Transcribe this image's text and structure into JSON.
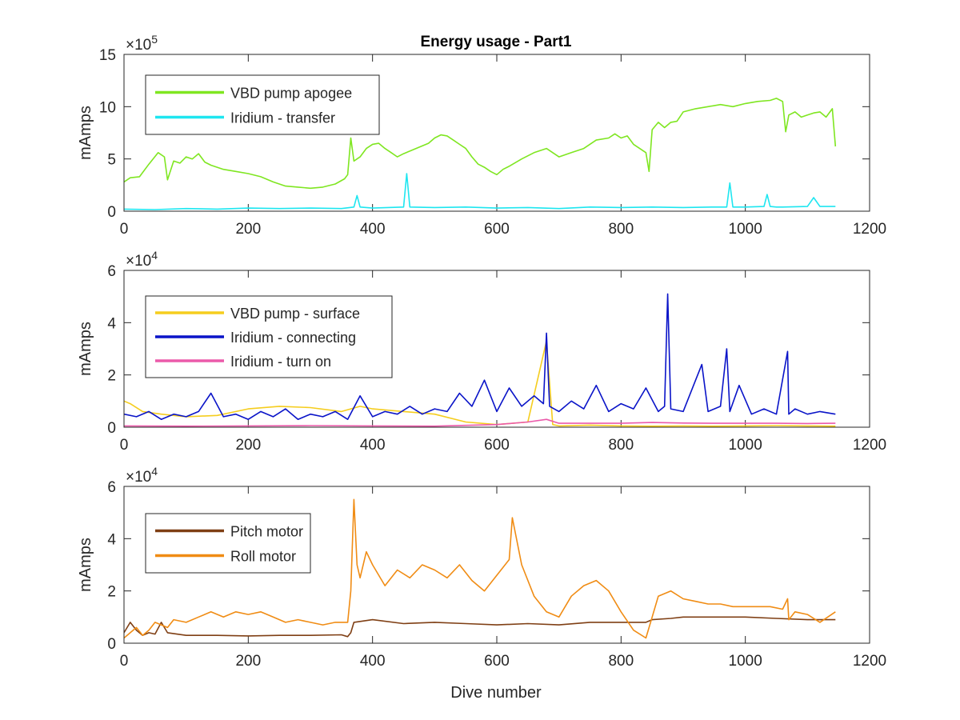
{
  "figure": {
    "title": "Energy usage - Part1",
    "xlabel": "Dive number"
  },
  "chart_data": [
    {
      "type": "line",
      "title": "Energy usage - Part1",
      "xlabel": "",
      "ylabel": "mAmps",
      "xlim": [
        0,
        1200
      ],
      "ylim": [
        0,
        1500000
      ],
      "xticks": [
        0,
        200,
        400,
        600,
        800,
        1000,
        1200
      ],
      "yticks": [
        0,
        5,
        10,
        15
      ],
      "y_exponent_label": "×10",
      "y_exponent": "5",
      "legend_position": "top-left",
      "series": [
        {
          "name": "VBD pump apogee",
          "color": "#7fe621",
          "x": [
            0,
            10,
            25,
            40,
            55,
            65,
            70,
            80,
            90,
            100,
            110,
            120,
            130,
            140,
            160,
            180,
            200,
            220,
            240,
            260,
            280,
            300,
            320,
            340,
            355,
            360,
            365,
            370,
            380,
            390,
            400,
            410,
            420,
            430,
            440,
            450,
            470,
            490,
            500,
            510,
            520,
            530,
            540,
            550,
            560,
            570,
            580,
            590,
            600,
            610,
            620,
            640,
            660,
            680,
            700,
            720,
            740,
            760,
            780,
            790,
            800,
            810,
            820,
            830,
            840,
            845,
            850,
            860,
            870,
            880,
            890,
            900,
            920,
            940,
            960,
            980,
            1000,
            1020,
            1040,
            1050,
            1060,
            1065,
            1070,
            1080,
            1090,
            1100,
            1110,
            1120,
            1130,
            1140,
            1145
          ],
          "values": [
            280000,
            320000,
            330000,
            450000,
            560000,
            520000,
            300000,
            480000,
            460000,
            520000,
            500000,
            550000,
            470000,
            440000,
            400000,
            380000,
            360000,
            330000,
            280000,
            240000,
            230000,
            220000,
            230000,
            260000,
            310000,
            350000,
            700000,
            480000,
            520000,
            600000,
            640000,
            650000,
            600000,
            560000,
            520000,
            550000,
            600000,
            650000,
            700000,
            730000,
            720000,
            680000,
            640000,
            600000,
            520000,
            450000,
            420000,
            380000,
            350000,
            400000,
            430000,
            500000,
            560000,
            600000,
            520000,
            560000,
            600000,
            680000,
            700000,
            740000,
            700000,
            720000,
            640000,
            600000,
            560000,
            380000,
            780000,
            850000,
            800000,
            850000,
            860000,
            950000,
            980000,
            1000000,
            1020000,
            1000000,
            1030000,
            1050000,
            1060000,
            1080000,
            1050000,
            760000,
            920000,
            950000,
            900000,
            920000,
            940000,
            950000,
            900000,
            980000,
            620000
          ]
        },
        {
          "name": "Iridium - transfer",
          "color": "#1ee6f0",
          "x": [
            0,
            50,
            100,
            150,
            200,
            250,
            300,
            350,
            370,
            375,
            380,
            400,
            450,
            455,
            460,
            500,
            550,
            600,
            650,
            700,
            750,
            800,
            850,
            900,
            950,
            970,
            975,
            980,
            1000,
            1030,
            1035,
            1040,
            1050,
            1060,
            1100,
            1110,
            1120,
            1145
          ],
          "values": [
            20000,
            15000,
            25000,
            20000,
            30000,
            25000,
            30000,
            25000,
            40000,
            150000,
            40000,
            30000,
            40000,
            360000,
            40000,
            35000,
            40000,
            30000,
            35000,
            25000,
            40000,
            35000,
            40000,
            35000,
            40000,
            40000,
            270000,
            40000,
            40000,
            45000,
            160000,
            45000,
            40000,
            40000,
            45000,
            130000,
            45000,
            45000
          ]
        }
      ]
    },
    {
      "type": "line",
      "title": "",
      "xlabel": "",
      "ylabel": "mAmps",
      "xlim": [
        0,
        1200
      ],
      "ylim": [
        0,
        60000
      ],
      "xticks": [
        0,
        200,
        400,
        600,
        800,
        1000,
        1200
      ],
      "yticks": [
        0,
        2,
        4,
        6
      ],
      "y_exponent_label": "×10",
      "y_exponent": "4",
      "legend_position": "top-left",
      "series": [
        {
          "name": "VBD pump - surface",
          "color": "#f5cd1e",
          "x": [
            0,
            10,
            30,
            60,
            100,
            150,
            200,
            250,
            300,
            350,
            380,
            400,
            450,
            500,
            550,
            600,
            650,
            680,
            690,
            700,
            750,
            800,
            850,
            900,
            950,
            1000,
            1050,
            1100,
            1145
          ],
          "values": [
            10000,
            9000,
            6000,
            5000,
            4000,
            4500,
            7000,
            8000,
            7500,
            6000,
            8000,
            7000,
            6000,
            5000,
            2000,
            1000,
            2000,
            33000,
            1000,
            500,
            800,
            500,
            400,
            500,
            400,
            500,
            600,
            500,
            400
          ]
        },
        {
          "name": "Iridium - connecting",
          "color": "#0a14c8",
          "x": [
            0,
            20,
            40,
            60,
            80,
            100,
            120,
            140,
            160,
            180,
            200,
            220,
            240,
            260,
            280,
            300,
            320,
            340,
            360,
            380,
            400,
            420,
            440,
            460,
            480,
            500,
            520,
            540,
            560,
            580,
            600,
            620,
            640,
            660,
            675,
            680,
            685,
            700,
            720,
            740,
            760,
            780,
            800,
            820,
            840,
            860,
            870,
            875,
            880,
            900,
            920,
            930,
            940,
            960,
            970,
            975,
            990,
            1010,
            1030,
            1050,
            1068,
            1070,
            1080,
            1100,
            1120,
            1145
          ],
          "values": [
            5000,
            4000,
            6000,
            3000,
            5000,
            4000,
            6000,
            13000,
            4000,
            5000,
            3000,
            6000,
            4000,
            7000,
            3000,
            5000,
            4000,
            6000,
            3000,
            12000,
            4000,
            6000,
            5000,
            8000,
            5000,
            7000,
            6000,
            13000,
            8000,
            18000,
            6000,
            15000,
            8000,
            12000,
            9000,
            36000,
            8000,
            6000,
            10000,
            7000,
            16000,
            6000,
            9000,
            7000,
            15000,
            6000,
            8000,
            51000,
            7000,
            6000,
            18000,
            24000,
            6000,
            8000,
            30000,
            6000,
            16000,
            5000,
            7000,
            5000,
            29000,
            5000,
            7000,
            5000,
            6000,
            5000
          ]
        },
        {
          "name": "Iridium - turn on",
          "color": "#eb5aaa",
          "x": [
            0,
            100,
            200,
            300,
            400,
            500,
            600,
            650,
            680,
            700,
            750,
            800,
            850,
            900,
            950,
            1000,
            1050,
            1100,
            1145
          ],
          "values": [
            500,
            400,
            500,
            600,
            500,
            400,
            1000,
            2000,
            3000,
            1500,
            1500,
            1500,
            1800,
            1600,
            1500,
            1500,
            1500,
            1400,
            1500
          ]
        }
      ]
    },
    {
      "type": "line",
      "title": "",
      "xlabel": "Dive number",
      "ylabel": "mAmps",
      "xlim": [
        0,
        1200
      ],
      "ylim": [
        0,
        60000
      ],
      "xticks": [
        0,
        200,
        400,
        600,
        800,
        1000,
        1200
      ],
      "yticks": [
        0,
        2,
        4,
        6
      ],
      "y_exponent_label": "×10",
      "y_exponent": "4",
      "legend_position": "top-left",
      "series": [
        {
          "name": "Pitch motor",
          "color": "#7f3f14",
          "x": [
            0,
            10,
            20,
            30,
            40,
            50,
            60,
            70,
            100,
            150,
            200,
            250,
            300,
            350,
            360,
            365,
            370,
            400,
            450,
            500,
            550,
            600,
            650,
            700,
            750,
            800,
            840,
            850,
            880,
            900,
            950,
            1000,
            1050,
            1100,
            1145
          ],
          "values": [
            4000,
            8000,
            5000,
            3000,
            4000,
            3500,
            8000,
            4000,
            3000,
            3000,
            2800,
            3000,
            3000,
            3200,
            2500,
            4000,
            8000,
            9000,
            7500,
            8000,
            7500,
            7000,
            7500,
            7000,
            8000,
            8000,
            8000,
            9000,
            9500,
            10000,
            10000,
            10000,
            9500,
            9000,
            9000
          ]
        },
        {
          "name": "Roll motor",
          "color": "#f08c14",
          "x": [
            0,
            10,
            20,
            30,
            40,
            50,
            60,
            70,
            80,
            100,
            120,
            140,
            160,
            180,
            200,
            220,
            240,
            260,
            280,
            300,
            320,
            340,
            355,
            360,
            365,
            370,
            375,
            380,
            390,
            400,
            420,
            440,
            460,
            480,
            500,
            520,
            540,
            560,
            580,
            600,
            620,
            625,
            640,
            660,
            680,
            700,
            720,
            740,
            760,
            780,
            800,
            820,
            840,
            850,
            860,
            880,
            900,
            920,
            940,
            960,
            980,
            1000,
            1020,
            1040,
            1060,
            1068,
            1070,
            1080,
            1100,
            1120,
            1145
          ],
          "values": [
            2000,
            4000,
            6000,
            3000,
            5000,
            8000,
            7000,
            6000,
            9000,
            8000,
            10000,
            12000,
            10000,
            12000,
            11000,
            12000,
            10000,
            8000,
            9000,
            8000,
            7000,
            8000,
            8000,
            8000,
            20000,
            55000,
            30000,
            25000,
            35000,
            30000,
            22000,
            28000,
            25000,
            30000,
            28000,
            25000,
            30000,
            24000,
            20000,
            26000,
            32000,
            48000,
            30000,
            18000,
            12000,
            10000,
            18000,
            22000,
            24000,
            20000,
            12000,
            5000,
            2000,
            10000,
            18000,
            20000,
            17000,
            16000,
            15000,
            15000,
            14000,
            14000,
            14000,
            14000,
            13000,
            17000,
            9000,
            12000,
            11000,
            8000,
            12000
          ]
        }
      ]
    }
  ]
}
